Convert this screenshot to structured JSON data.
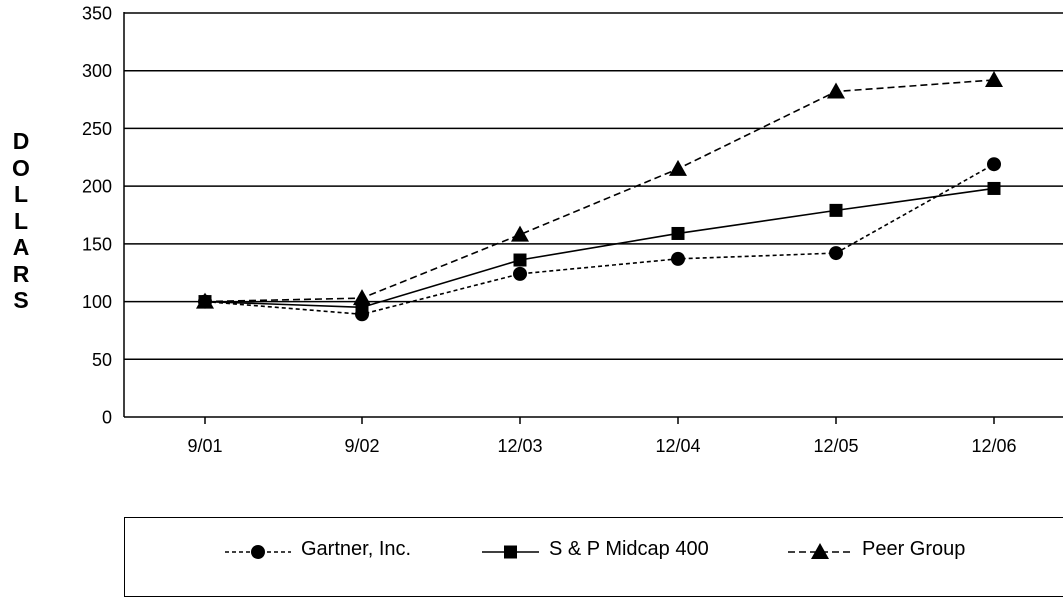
{
  "chart_data": {
    "type": "line",
    "ylabel": "DOLLARS",
    "xlabel": "",
    "title": "",
    "categories": [
      "9/01",
      "9/02",
      "12/03",
      "12/04",
      "12/05",
      "12/06"
    ],
    "ylim": [
      0,
      350
    ],
    "yticks": [
      0,
      50,
      100,
      150,
      200,
      250,
      300,
      350
    ],
    "grid": "horizontal",
    "legend_position": "bottom",
    "series": [
      {
        "name": "Gartner, Inc.",
        "marker": "circle",
        "line": "dotted",
        "values": [
          100,
          89,
          124,
          137,
          142,
          219
        ]
      },
      {
        "name": "S & P Midcap 400",
        "marker": "square",
        "line": "solid",
        "values": [
          100,
          95,
          136,
          159,
          179,
          198
        ]
      },
      {
        "name": "Peer Group",
        "marker": "triangle",
        "line": "dashed",
        "values": [
          100,
          103,
          158,
          215,
          282,
          292
        ]
      }
    ]
  }
}
